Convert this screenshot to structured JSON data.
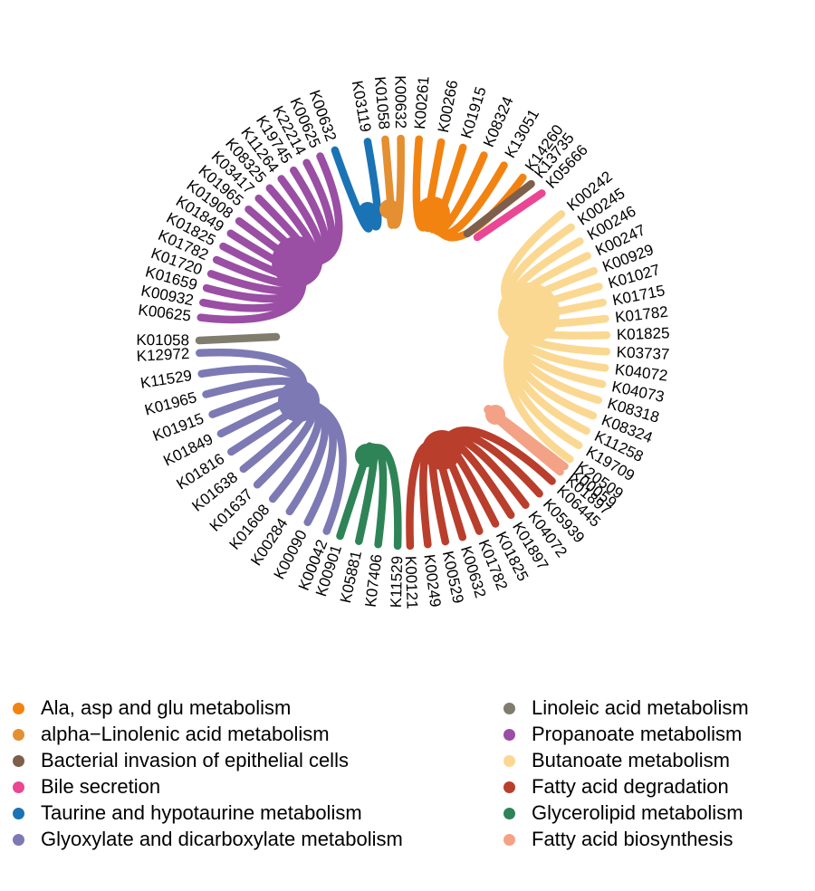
{
  "groups": [
    {
      "name": "Ala, asp and glu metabolism",
      "color": "#F28310",
      "icon": "dot-icon",
      "leaves": [
        "K00261",
        "K00266",
        "K01915",
        "K08324",
        "K13051",
        "K14260"
      ]
    },
    {
      "name": "alpha−Linolenic acid metabolism",
      "color": "#E48F32",
      "icon": "dot-icon",
      "leaves": [
        "K01058",
        "K00632"
      ]
    },
    {
      "name": "Bacterial invasion of epithelial cells",
      "color": "#7E5F4C",
      "icon": "dot-icon",
      "leaves": [
        "K13735"
      ]
    },
    {
      "name": "Bile secretion",
      "color": "#EA4694",
      "icon": "dot-icon",
      "leaves": [
        "K05666"
      ]
    },
    {
      "name": "Taurine and hypotaurine metabolism",
      "color": "#1A73B4",
      "icon": "dot-icon",
      "leaves": [
        "K00632",
        "K03119"
      ]
    },
    {
      "name": "Glyoxylate and dicarboxylate metabolism",
      "color": "#7C79B4",
      "icon": "dot-icon",
      "leaves": [
        "K00042",
        "K00090",
        "K00284",
        "K01608",
        "K01637",
        "K01638",
        "K01816",
        "K01849",
        "K01915",
        "K01965",
        "K11529",
        "K12972"
      ]
    },
    {
      "name": "Linoleic acid metabolism",
      "color": "#807D6E",
      "icon": "dot-icon",
      "leaves": [
        "K01058"
      ]
    },
    {
      "name": "Propanoate metabolism",
      "color": "#9A4EA4",
      "icon": "dot-icon",
      "leaves": [
        "K00625",
        "K00932",
        "K01659",
        "K01720",
        "K01782",
        "K01825",
        "K01849",
        "K01908",
        "K01965",
        "K03417",
        "K08325",
        "K11264",
        "K19745",
        "K22214",
        "K00625"
      ]
    },
    {
      "name": "Butanoate metabolism",
      "color": "#FBD891",
      "icon": "dot-icon",
      "leaves": [
        "K00242",
        "K00245",
        "K00246",
        "K00247",
        "K00929",
        "K01027",
        "K01715",
        "K01782",
        "K01825",
        "K03737",
        "K04072",
        "K04073",
        "K08318",
        "K08324",
        "K11258",
        "K19709",
        "K20509"
      ]
    },
    {
      "name": "Fatty acid degradation",
      "color": "#B93E2C",
      "icon": "dot-icon",
      "leaves": [
        "K06445",
        "K05939",
        "K04072",
        "K01897",
        "K01825",
        "K01782",
        "K00632",
        "K00529",
        "K00249",
        "K00121"
      ]
    },
    {
      "name": "Glycerolipid metabolism",
      "color": "#2E8456",
      "icon": "dot-icon",
      "leaves": [
        "K11529",
        "K07406",
        "K05881",
        "K00901"
      ]
    },
    {
      "name": "Fatty acid biosynthesis",
      "color": "#F3A286",
      "icon": "dot-icon",
      "leaves": [
        "K00059",
        "K01897"
      ]
    }
  ],
  "legend_order": [
    0,
    1,
    2,
    3,
    4,
    5,
    6,
    7,
    8,
    9,
    10,
    11
  ]
}
